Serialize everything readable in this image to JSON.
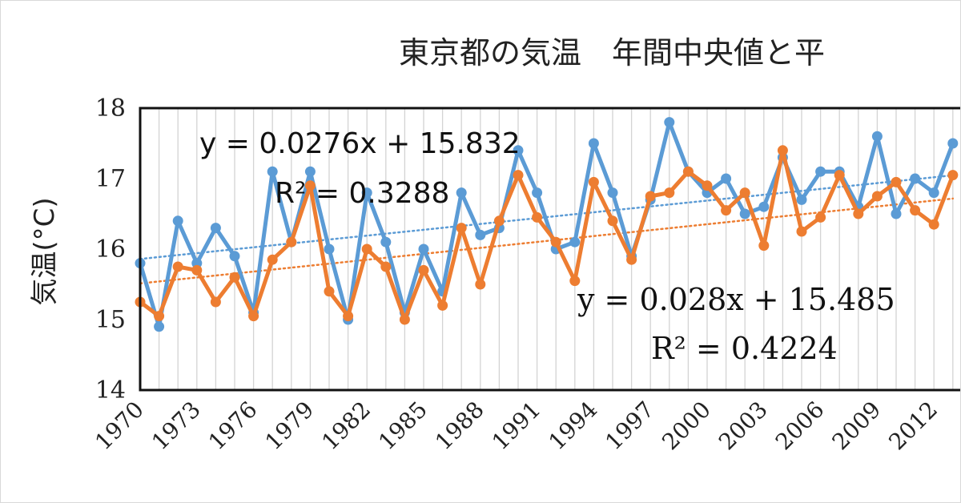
{
  "chart_data": {
    "type": "line",
    "title": "東京都の気温　年間中央値と平",
    "ylabel": "気温(°C)",
    "ylim": [
      14,
      18
    ],
    "yticks": [
      "14",
      "15",
      "16",
      "17",
      "18"
    ],
    "x": [
      1970,
      1971,
      1972,
      1973,
      1974,
      1975,
      1976,
      1977,
      1978,
      1979,
      1980,
      1981,
      1982,
      1983,
      1984,
      1985,
      1986,
      1987,
      1988,
      1989,
      1990,
      1991,
      1992,
      1993,
      1994,
      1995,
      1996,
      1997,
      1998,
      1999,
      2000,
      2001,
      2002,
      2003,
      2004,
      2005,
      2006,
      2007,
      2008,
      2009,
      2010,
      2011,
      2012,
      2013
    ],
    "xticks": [
      "1970",
      "1973",
      "1976",
      "1979",
      "1982",
      "1985",
      "1988",
      "1991",
      "1994",
      "1997",
      "2000",
      "2003",
      "2006",
      "2009",
      "2012"
    ],
    "grid": "vertical",
    "series": [
      {
        "color": "#5b9bd5",
        "values": [
          15.8,
          14.9,
          16.4,
          15.8,
          16.3,
          15.9,
          15.1,
          17.1,
          16.1,
          17.1,
          16.0,
          15.0,
          16.8,
          16.1,
          15.1,
          16.0,
          15.4,
          16.8,
          16.2,
          16.3,
          17.4,
          16.8,
          16.0,
          16.1,
          17.5,
          16.8,
          15.9,
          16.7,
          17.8,
          17.1,
          16.8,
          17.0,
          16.5,
          16.6,
          17.3,
          16.7,
          17.1,
          17.1,
          16.6,
          17.6,
          16.5,
          17.0,
          16.8,
          17.5
        ],
        "trend_equation": "y = 0.0276x + 15.832",
        "trend_r2": "R² = 0.3288",
        "trend_start": 15.86,
        "trend_slope": 0.0276
      },
      {
        "color": "#ed7d31",
        "values": [
          15.25,
          15.05,
          15.75,
          15.7,
          15.25,
          15.6,
          15.05,
          15.85,
          16.1,
          16.9,
          15.4,
          15.05,
          16.0,
          15.75,
          15.0,
          15.7,
          15.2,
          16.3,
          15.5,
          16.4,
          17.05,
          16.45,
          16.1,
          15.55,
          16.95,
          16.4,
          15.85,
          16.75,
          16.8,
          17.1,
          16.9,
          16.55,
          16.8,
          16.05,
          17.4,
          16.25,
          16.45,
          17.05,
          16.5,
          16.75,
          16.95,
          16.55,
          16.35,
          17.05
        ],
        "trend_equation": "y = 0.028x + 15.485",
        "trend_r2": "R² = 0.4224",
        "trend_start": 15.513,
        "trend_slope": 0.028
      }
    ]
  }
}
